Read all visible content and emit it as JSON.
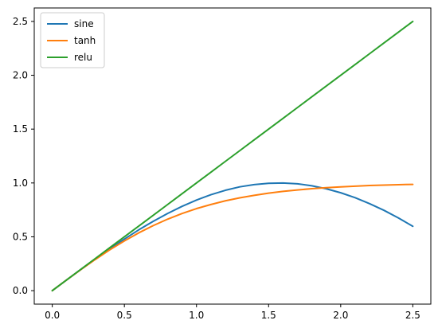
{
  "chart_data": {
    "type": "line",
    "title": "",
    "xlabel": "",
    "ylabel": "",
    "xlim": [
      -0.125,
      2.625
    ],
    "ylim": [
      -0.125,
      2.625
    ],
    "xticks": [
      "0.0",
      "0.5",
      "1.0",
      "1.5",
      "2.0",
      "2.5"
    ],
    "yticks": [
      "0.0",
      "0.5",
      "1.0",
      "1.5",
      "2.0",
      "2.5"
    ],
    "grid": false,
    "legend_position": "top-left",
    "x": [
      0.0,
      0.1,
      0.2,
      0.3,
      0.4,
      0.5,
      0.6,
      0.7,
      0.8,
      0.9,
      1.0,
      1.1,
      1.2,
      1.3,
      1.4,
      1.5,
      1.6,
      1.7,
      1.8,
      1.9,
      2.0,
      2.1,
      2.2,
      2.3,
      2.4,
      2.5
    ],
    "series": [
      {
        "name": "sine",
        "color": "#1f77b4",
        "values": [
          0.0,
          0.1,
          0.199,
          0.296,
          0.389,
          0.479,
          0.565,
          0.644,
          0.717,
          0.783,
          0.841,
          0.891,
          0.932,
          0.964,
          0.985,
          0.997,
          1.0,
          0.992,
          0.974,
          0.946,
          0.909,
          0.863,
          0.808,
          0.746,
          0.675,
          0.598
        ]
      },
      {
        "name": "tanh",
        "color": "#ff7f0e",
        "values": [
          0.0,
          0.1,
          0.197,
          0.291,
          0.38,
          0.462,
          0.537,
          0.604,
          0.664,
          0.716,
          0.762,
          0.8,
          0.834,
          0.862,
          0.885,
          0.905,
          0.922,
          0.935,
          0.947,
          0.956,
          0.964,
          0.97,
          0.976,
          0.98,
          0.984,
          0.987
        ]
      },
      {
        "name": "relu",
        "color": "#2ca02c",
        "values": [
          0.0,
          0.1,
          0.2,
          0.3,
          0.4,
          0.5,
          0.6,
          0.7,
          0.8,
          0.9,
          1.0,
          1.1,
          1.2,
          1.3,
          1.4,
          1.5,
          1.6,
          1.7,
          1.8,
          1.9,
          2.0,
          2.1,
          2.2,
          2.3,
          2.4,
          2.5
        ]
      }
    ]
  }
}
